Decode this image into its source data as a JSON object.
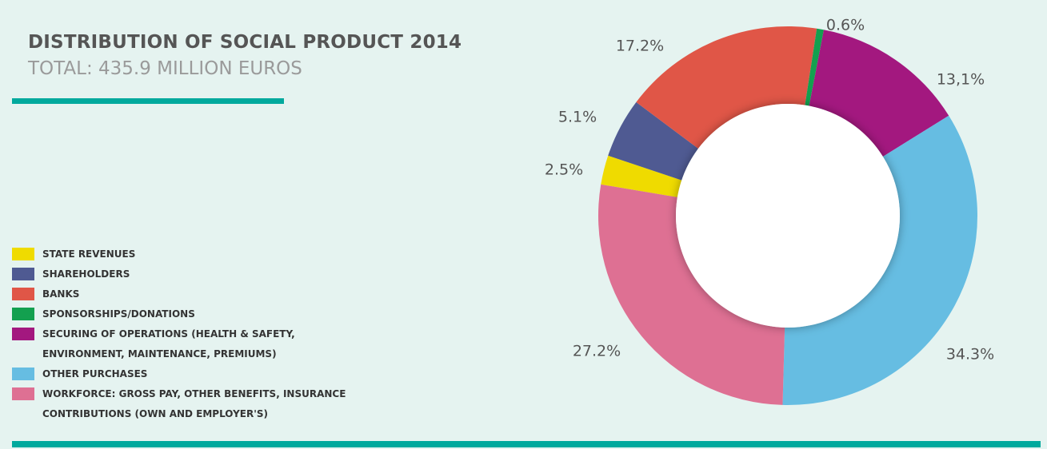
{
  "chart_data": {
    "type": "donut",
    "title": "DISTRIBUTION OF SOCIAL PRODUCT 2014",
    "subtitle": "TOTAL: 435.9 MILLION EUROS",
    "categories": [
      "STATE REVENUES",
      "SHAREHOLDERS",
      "BANKS",
      "SPONSORSHIPS/DONATIONS",
      "SECURING OF OPERATIONS (HEALTH & SAFETY, ENVIRONMENT, MAINTENANCE, PREMIUMS)",
      "OTHER PURCHASES",
      "WORKFORCE: GROSS PAY, OTHER BENEFITS, INSURANCE CONTRIBUTIONS (OWN AND EMPLOYER'S)"
    ],
    "values": [
      2.5,
      5.1,
      17.2,
      0.6,
      13.1,
      34.3,
      27.2
    ],
    "value_labels": [
      "2.5%",
      "5.1%",
      "17.2%",
      "0.6%",
      "13,1%",
      "34.3%",
      "27.2%"
    ],
    "colors": [
      "#efdb00",
      "#4f5a92",
      "#e05647",
      "#13a04f",
      "#a3187f",
      "#66bde2",
      "#de7093"
    ]
  }
}
